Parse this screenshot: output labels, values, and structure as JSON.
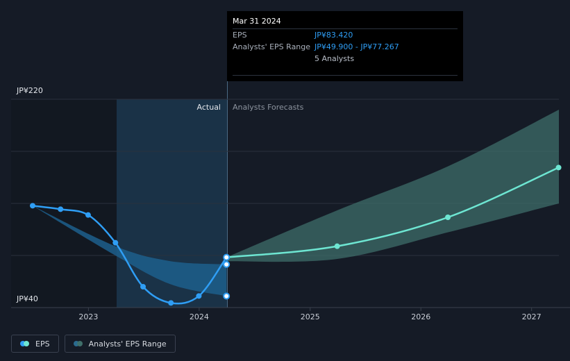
{
  "tooltip": {
    "date": "Mar 31 2024",
    "eps_label": "EPS",
    "eps_value": "JP¥83.420",
    "range_label": "Analysts' EPS Range",
    "range_low": "JP¥49.900",
    "range_sep": " - ",
    "range_high": "JP¥77.267",
    "analysts": "5 Analysts"
  },
  "sections": {
    "actual": "Actual",
    "forecast": "Analysts Forecasts"
  },
  "legend": [
    {
      "label": "EPS",
      "colors": [
        "#2f9ef5",
        "#6ee6d2"
      ]
    },
    {
      "label": "Analysts' EPS Range",
      "colors": [
        "#2a6b8f",
        "#3f6f6a"
      ]
    }
  ],
  "colors": {
    "eps_actual": "#2f9ef5",
    "eps_forecast": "#6ee6d2",
    "range_actual": "#1d5f8c",
    "range_forecast": "#3d6e69",
    "background": "#151b26"
  },
  "chart_data": {
    "type": "line",
    "y_top_label": "JP¥220",
    "y_bottom_label": "JP¥40",
    "ylim": [
      40,
      220
    ],
    "xlim": [
      "2022-07-01",
      "2027-04-01"
    ],
    "x_ticks": [
      {
        "label": "2023",
        "x": "2023-01-01"
      },
      {
        "label": "2024",
        "x": "2024-01-01"
      },
      {
        "label": "2025",
        "x": "2025-01-01"
      },
      {
        "label": "2026",
        "x": "2026-01-01"
      },
      {
        "label": "2027",
        "x": "2027-01-01"
      }
    ],
    "series": [
      {
        "name": "EPS",
        "points": [
          {
            "x": "2022-07-01",
            "y": 128
          },
          {
            "x": "2022-10-01",
            "y": 125
          },
          {
            "x": "2022-12-31",
            "y": 120
          },
          {
            "x": "2023-03-31",
            "y": 96
          },
          {
            "x": "2023-06-30",
            "y": 58
          },
          {
            "x": "2023-09-30",
            "y": 44
          },
          {
            "x": "2023-12-31",
            "y": 50
          },
          {
            "x": "2024-03-31",
            "y": 83.42
          }
        ]
      },
      {
        "name": "EPS Forecast",
        "points": [
          {
            "x": "2024-03-31",
            "y": 83.42
          },
          {
            "x": "2025-03-31",
            "y": 93
          },
          {
            "x": "2026-03-31",
            "y": 118
          },
          {
            "x": "2027-03-31",
            "y": 161
          }
        ]
      }
    ],
    "range_actual": {
      "upper": [
        {
          "x": "2022-07-01",
          "y": 128
        },
        {
          "x": "2023-03-31",
          "y": 93
        },
        {
          "x": "2023-09-30",
          "y": 80
        },
        {
          "x": "2024-03-31",
          "y": 77.267
        }
      ],
      "lower": [
        {
          "x": "2022-07-01",
          "y": 128
        },
        {
          "x": "2023-03-31",
          "y": 85
        },
        {
          "x": "2023-09-30",
          "y": 60
        },
        {
          "x": "2024-03-31",
          "y": 49.9
        }
      ]
    },
    "range_forecast": {
      "upper": [
        {
          "x": "2024-03-31",
          "y": 83.42
        },
        {
          "x": "2025-03-31",
          "y": 124
        },
        {
          "x": "2026-03-31",
          "y": 162
        },
        {
          "x": "2027-04-01",
          "y": 211
        }
      ],
      "lower": [
        {
          "x": "2024-03-31",
          "y": 80
        },
        {
          "x": "2025-03-31",
          "y": 82
        },
        {
          "x": "2026-03-31",
          "y": 105
        },
        {
          "x": "2027-04-01",
          "y": 130
        }
      ]
    },
    "markers": [
      {
        "x": "2024-03-31",
        "y": 83.42
      },
      {
        "x": "2024-03-31",
        "y": 77.267
      },
      {
        "x": "2024-03-31",
        "y": 49.9
      }
    ]
  }
}
